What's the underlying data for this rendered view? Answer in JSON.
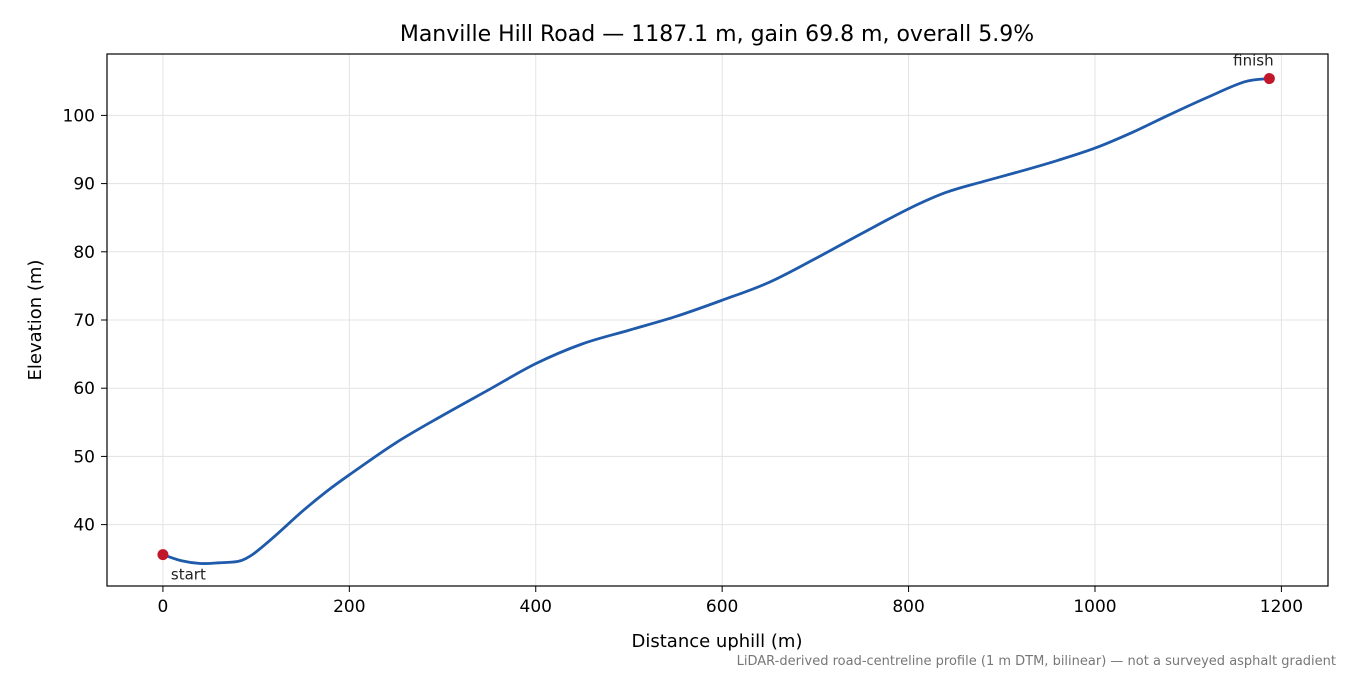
{
  "chart_data": {
    "type": "line",
    "title": "Manville Hill Road — 1187.1 m, gain 69.8 m, overall 5.9%",
    "xlabel": "Distance uphill (m)",
    "ylabel": "Elevation (m)",
    "xlim": [
      -60,
      1250
    ],
    "ylim": [
      31,
      109
    ],
    "xticks": [
      0,
      200,
      400,
      600,
      800,
      1000,
      1200
    ],
    "yticks": [
      40,
      50,
      60,
      70,
      80,
      90,
      100
    ],
    "grid": true,
    "line_color": "#1f5aab",
    "marker_color": "#c0182a",
    "series": [
      {
        "x": [
          0,
          20,
          40,
          60,
          80,
          90,
          100,
          120,
          150,
          175,
          200,
          250,
          300,
          350,
          400,
          450,
          500,
          550,
          600,
          650,
          700,
          750,
          800,
          840,
          880,
          920,
          960,
          1000,
          1040,
          1080,
          1120,
          1160,
          1187.1
        ],
        "y": [
          35.6,
          34.7,
          34.3,
          34.4,
          34.6,
          35.1,
          36.0,
          38.3,
          42.0,
          44.8,
          47.3,
          52.0,
          56.0,
          59.8,
          63.6,
          66.5,
          68.5,
          70.5,
          72.9,
          75.5,
          79.0,
          82.7,
          86.3,
          88.7,
          90.3,
          91.8,
          93.4,
          95.2,
          97.5,
          100.1,
          102.6,
          104.9,
          105.4
        ]
      }
    ],
    "annotations": [
      {
        "text": "start",
        "x": 0,
        "y": 35.6
      },
      {
        "text": "finish",
        "x": 1187.1,
        "y": 105.4
      }
    ],
    "footnote": "LiDAR-derived road-centreline profile (1 m DTM, bilinear) — not a surveyed asphalt gradient"
  }
}
